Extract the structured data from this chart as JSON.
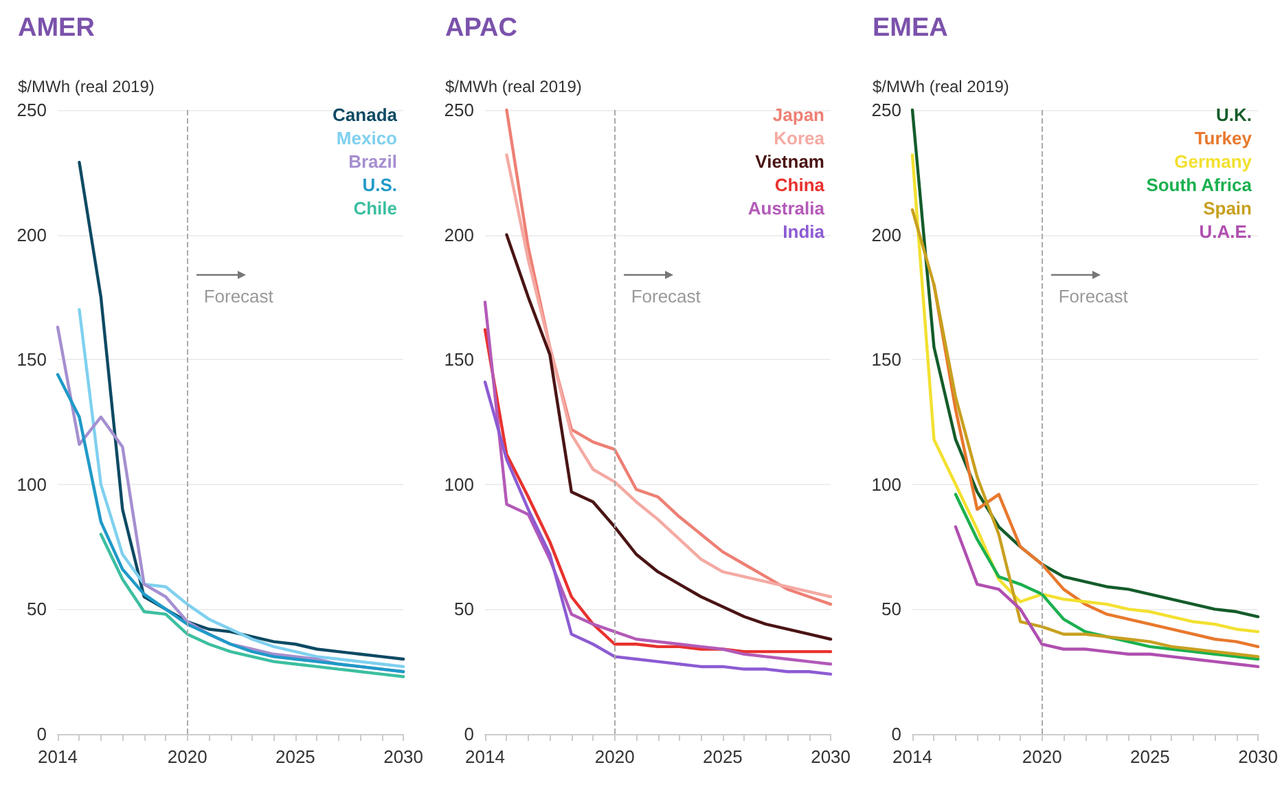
{
  "chart_data": [
    {
      "type": "line",
      "title": "AMER",
      "ylabel": "$/MWh (real 2019)",
      "xlim": [
        2014,
        2030
      ],
      "ylim": [
        0,
        250
      ],
      "yticks": [
        0,
        50,
        100,
        150,
        200,
        250
      ],
      "xticks": [
        2014,
        {
          "value": 2015,
          "label": null
        },
        {
          "value": 2016,
          "label": null
        },
        {
          "value": 2017,
          "label": null
        },
        {
          "value": 2018,
          "label": null
        },
        {
          "value": 2019,
          "label": null
        },
        2020,
        {
          "value": 2021,
          "label": null
        },
        {
          "value": 2022,
          "label": null
        },
        {
          "value": 2023,
          "label": null
        },
        {
          "value": 2024,
          "label": null
        },
        2025,
        {
          "value": 2026,
          "label": null
        },
        {
          "value": 2027,
          "label": null
        },
        {
          "value": 2028,
          "label": null
        },
        {
          "value": 2029,
          "label": null
        },
        2030
      ],
      "grid": "y",
      "legend": "top right",
      "marker": "none",
      "line_style": "solid",
      "ref_lines": [
        {
          "axis": "x",
          "value": 2020,
          "label": "Forecast",
          "color": "#aaaaaa",
          "line_style": "dashed"
        }
      ],
      "series": [
        {
          "name": "Canada",
          "color": "#0d4a63",
          "x": [
            2015,
            2016,
            2017,
            2018,
            2019,
            2020,
            2021,
            2022,
            2023,
            2024,
            2025,
            2026,
            2027,
            2028,
            2029,
            2030
          ],
          "values": [
            229,
            175,
            90,
            55,
            50,
            45,
            42,
            41,
            39,
            37,
            36,
            34,
            33,
            32,
            31,
            30
          ]
        },
        {
          "name": "Mexico",
          "color": "#7fd0ef",
          "x": [
            2015,
            2016,
            2017,
            2018,
            2019,
            2020,
            2021,
            2022,
            2023,
            2024,
            2025,
            2026,
            2027,
            2028,
            2029,
            2030
          ],
          "values": [
            170,
            100,
            72,
            60,
            59,
            52,
            46,
            42,
            38,
            35,
            33,
            31,
            30,
            29,
            28,
            27
          ]
        },
        {
          "name": "Brazil",
          "color": "#a58fd0",
          "x": [
            2014,
            2015,
            2016,
            2017,
            2018,
            2019,
            2020,
            2021,
            2022,
            2023,
            2024,
            2025,
            2026,
            2027,
            2028,
            2029,
            2030
          ],
          "values": [
            163,
            116,
            127,
            115,
            60,
            55,
            45,
            40,
            36,
            34,
            32,
            31,
            30,
            28,
            27,
            26,
            25
          ]
        },
        {
          "name": "U.S.",
          "color": "#1f9ac8",
          "x": [
            2014,
            2015,
            2016,
            2017,
            2018,
            2019,
            2020,
            2021,
            2022,
            2023,
            2024,
            2025,
            2026,
            2027,
            2028,
            2029,
            2030
          ],
          "values": [
            144,
            127,
            85,
            66,
            56,
            50,
            44,
            40,
            36,
            33,
            31,
            30,
            29,
            28,
            27,
            26,
            25
          ]
        },
        {
          "name": "Chile",
          "color": "#3cbfa0",
          "x": [
            2016,
            2017,
            2018,
            2019,
            2020,
            2021,
            2022,
            2023,
            2024,
            2025,
            2026,
            2027,
            2028,
            2029,
            2030
          ],
          "values": [
            80,
            62,
            49,
            48,
            40,
            36,
            33,
            31,
            29,
            28,
            27,
            26,
            25,
            24,
            23
          ]
        }
      ]
    },
    {
      "type": "line",
      "title": "APAC",
      "ylabel": "$/MWh (real 2019)",
      "xlim": [
        2014,
        2030
      ],
      "ylim": [
        0,
        250
      ],
      "yticks": [
        0,
        50,
        100,
        150,
        200,
        250
      ],
      "xticks": [
        2014,
        {
          "value": 2015,
          "label": null
        },
        {
          "value": 2016,
          "label": null
        },
        {
          "value": 2017,
          "label": null
        },
        {
          "value": 2018,
          "label": null
        },
        {
          "value": 2019,
          "label": null
        },
        2020,
        {
          "value": 2021,
          "label": null
        },
        {
          "value": 2022,
          "label": null
        },
        {
          "value": 2023,
          "label": null
        },
        {
          "value": 2024,
          "label": null
        },
        2025,
        {
          "value": 2026,
          "label": null
        },
        {
          "value": 2027,
          "label": null
        },
        {
          "value": 2028,
          "label": null
        },
        {
          "value": 2029,
          "label": null
        },
        2030
      ],
      "grid": "y",
      "legend": "top right",
      "marker": "none",
      "line_style": "solid",
      "ref_lines": [
        {
          "axis": "x",
          "value": 2020,
          "label": "Forecast",
          "color": "#aaaaaa",
          "line_style": "dashed"
        }
      ],
      "series": [
        {
          "name": "Japan",
          "color": "#ee7f74",
          "x": [
            2015,
            2016,
            2017,
            2018,
            2019,
            2020,
            2021,
            2022,
            2023,
            2024,
            2025,
            2026,
            2027,
            2028,
            2029,
            2030
          ],
          "values": [
            250,
            195,
            155,
            122,
            117,
            114,
            98,
            95,
            87,
            80,
            73,
            68,
            63,
            58,
            55,
            52
          ]
        },
        {
          "name": "Korea",
          "color": "#f4aaa3",
          "x": [
            2015,
            2016,
            2017,
            2018,
            2019,
            2020,
            2021,
            2022,
            2023,
            2024,
            2025,
            2026,
            2027,
            2028,
            2029,
            2030
          ],
          "values": [
            232,
            190,
            155,
            120,
            106,
            101,
            93,
            86,
            78,
            70,
            65,
            63,
            61,
            59,
            57,
            55
          ]
        },
        {
          "name": "Vietnam",
          "color": "#4a1414",
          "x": [
            2015,
            2016,
            2017,
            2018,
            2019,
            2020,
            2021,
            2022,
            2023,
            2024,
            2025,
            2026,
            2027,
            2028,
            2029,
            2030
          ],
          "values": [
            200,
            175,
            152,
            97,
            93,
            83,
            72,
            65,
            60,
            55,
            51,
            47,
            44,
            42,
            40,
            38
          ]
        },
        {
          "name": "China",
          "color": "#e8322e",
          "x": [
            2014,
            2015,
            2016,
            2017,
            2018,
            2019,
            2020,
            2021,
            2022,
            2023,
            2024,
            2025,
            2026,
            2027,
            2028,
            2029,
            2030
          ],
          "values": [
            162,
            112,
            95,
            77,
            55,
            44,
            36,
            36,
            35,
            35,
            34,
            34,
            33,
            33,
            33,
            33,
            33
          ]
        },
        {
          "name": "Australia",
          "color": "#b35ab8",
          "x": [
            2014,
            2015,
            2016,
            2017,
            2018,
            2019,
            2020,
            2021,
            2022,
            2023,
            2024,
            2025,
            2026,
            2027,
            2028,
            2029,
            2030
          ],
          "values": [
            173,
            92,
            88,
            70,
            48,
            44,
            41,
            38,
            37,
            36,
            35,
            34,
            32,
            31,
            30,
            29,
            28
          ]
        },
        {
          "name": "India",
          "color": "#8c5bd3",
          "x": [
            2014,
            2015,
            2016,
            2017,
            2018,
            2019,
            2020,
            2021,
            2022,
            2023,
            2024,
            2025,
            2026,
            2027,
            2028,
            2029,
            2030
          ],
          "values": [
            141,
            110,
            90,
            72,
            40,
            36,
            31,
            30,
            29,
            28,
            27,
            27,
            26,
            26,
            25,
            25,
            24
          ]
        }
      ]
    },
    {
      "type": "line",
      "title": "EMEA",
      "ylabel": "$/MWh (real 2019)",
      "xlim": [
        2014,
        2030
      ],
      "ylim": [
        0,
        250
      ],
      "yticks": [
        0,
        50,
        100,
        150,
        200,
        250
      ],
      "xticks": [
        2014,
        {
          "value": 2015,
          "label": null
        },
        {
          "value": 2016,
          "label": null
        },
        {
          "value": 2017,
          "label": null
        },
        {
          "value": 2018,
          "label": null
        },
        {
          "value": 2019,
          "label": null
        },
        2020,
        {
          "value": 2021,
          "label": null
        },
        {
          "value": 2022,
          "label": null
        },
        {
          "value": 2023,
          "label": null
        },
        {
          "value": 2024,
          "label": null
        },
        2025,
        {
          "value": 2026,
          "label": null
        },
        {
          "value": 2027,
          "label": null
        },
        {
          "value": 2028,
          "label": null
        },
        {
          "value": 2029,
          "label": null
        },
        2030
      ],
      "grid": "y",
      "legend": "top right",
      "marker": "none",
      "line_style": "solid",
      "ref_lines": [
        {
          "axis": "x",
          "value": 2020,
          "label": "Forecast",
          "color": "#aaaaaa",
          "line_style": "dashed"
        }
      ],
      "series": [
        {
          "name": "U.K.",
          "color": "#145c2a",
          "x": [
            2014,
            2015,
            2016,
            2017,
            2018,
            2019,
            2020,
            2021,
            2022,
            2023,
            2024,
            2025,
            2026,
            2027,
            2028,
            2029,
            2030
          ],
          "values": [
            250,
            155,
            118,
            97,
            83,
            75,
            68,
            63,
            61,
            59,
            58,
            56,
            54,
            52,
            50,
            49,
            47
          ]
        },
        {
          "name": "Turkey",
          "color": "#e8782d",
          "x": [
            2015,
            2016,
            2017,
            2018,
            2019,
            2020,
            2021,
            2022,
            2023,
            2024,
            2025,
            2026,
            2027,
            2028,
            2029,
            2030
          ],
          "values": [
            180,
            130,
            90,
            96,
            75,
            68,
            58,
            52,
            48,
            46,
            44,
            42,
            40,
            38,
            37,
            35
          ]
        },
        {
          "name": "Germany",
          "color": "#f3e030",
          "x": [
            2014,
            2015,
            2016,
            2017,
            2018,
            2019,
            2020,
            2021,
            2022,
            2023,
            2024,
            2025,
            2026,
            2027,
            2028,
            2029,
            2030
          ],
          "values": [
            232,
            118,
            100,
            82,
            62,
            53,
            56,
            54,
            53,
            52,
            50,
            49,
            47,
            45,
            44,
            42,
            41
          ]
        },
        {
          "name": "South Africa",
          "color": "#1bb04f",
          "x": [
            2016,
            2017,
            2018,
            2019,
            2020,
            2021,
            2022,
            2023,
            2024,
            2025,
            2026,
            2027,
            2028,
            2029,
            2030
          ],
          "values": [
            96,
            78,
            63,
            60,
            56,
            46,
            41,
            39,
            37,
            35,
            34,
            33,
            32,
            31,
            30
          ]
        },
        {
          "name": "Spain",
          "color": "#c8a020",
          "x": [
            2014,
            2015,
            2016,
            2017,
            2018,
            2019,
            2020,
            2021,
            2022,
            2023,
            2024,
            2025,
            2026,
            2027,
            2028,
            2029,
            2030
          ],
          "values": [
            210,
            180,
            135,
            103,
            80,
            45,
            43,
            40,
            40,
            39,
            38,
            37,
            35,
            34,
            33,
            32,
            31
          ]
        },
        {
          "name": "U.A.E.",
          "color": "#b04fb0",
          "x": [
            2016,
            2017,
            2018,
            2019,
            2020,
            2021,
            2022,
            2023,
            2024,
            2025,
            2026,
            2027,
            2028,
            2029,
            2030
          ],
          "values": [
            83,
            60,
            58,
            50,
            36,
            34,
            34,
            33,
            32,
            32,
            31,
            30,
            29,
            28,
            27
          ]
        }
      ]
    }
  ]
}
